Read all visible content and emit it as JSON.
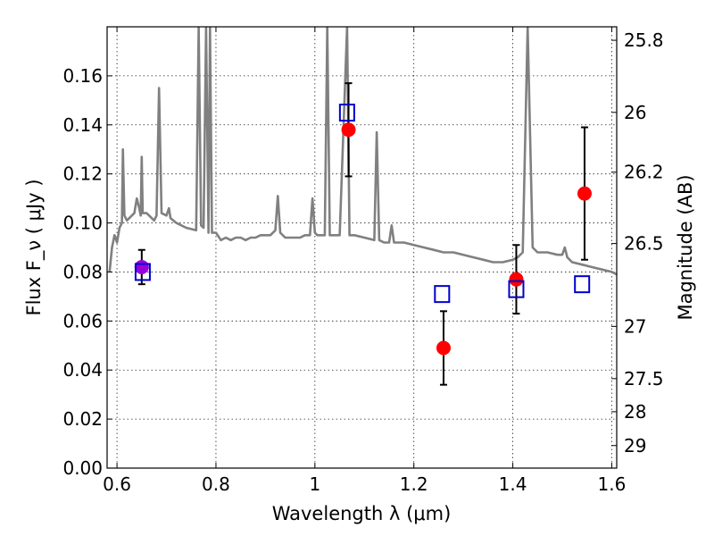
{
  "chart_data": {
    "type": "scatter",
    "xlabel": "Wavelength  λ (μm)",
    "ylabel": "Flux  F_ν ( μJy )",
    "ylabel_right": "Magnitude (AB)",
    "xlim": [
      0.58,
      1.61
    ],
    "ylim": [
      0.0,
      0.18
    ],
    "grid": true,
    "x_ticks": [
      0.6,
      0.8,
      1.0,
      1.2,
      1.4,
      1.6
    ],
    "x_tick_labels": [
      "0.6",
      "0.8",
      "1",
      "1.2",
      "1.4",
      "1.6"
    ],
    "y_ticks": [
      0.0,
      0.02,
      0.04,
      0.06,
      0.08,
      0.1,
      0.12,
      0.14,
      0.16
    ],
    "y_tick_labels": [
      "0.00",
      "0.02",
      "0.04",
      "0.06",
      "0.08",
      "0.10",
      "0.12",
      "0.14",
      "0.16"
    ],
    "right_ticks": [
      {
        "label": "25.8",
        "flux": 0.1745
      },
      {
        "label": "26",
        "flux": 0.1451
      },
      {
        "label": "26.2",
        "flux": 0.1207
      },
      {
        "label": "26.5",
        "flux": 0.0916
      },
      {
        "label": "27",
        "flux": 0.0578
      },
      {
        "label": "27.5",
        "flux": 0.0365
      },
      {
        "label": "28",
        "flux": 0.023
      },
      {
        "label": "29",
        "flux": 0.0092
      }
    ],
    "series": [
      {
        "kind": "line",
        "color": "#808080",
        "points": [
          [
            0.585,
            0.08
          ],
          [
            0.59,
            0.09
          ],
          [
            0.595,
            0.095
          ],
          [
            0.6,
            0.092
          ],
          [
            0.605,
            0.098
          ],
          [
            0.61,
            0.1
          ],
          [
            0.612,
            0.13
          ],
          [
            0.615,
            0.103
          ],
          [
            0.62,
            0.101
          ],
          [
            0.63,
            0.103
          ],
          [
            0.635,
            0.104
          ],
          [
            0.64,
            0.11
          ],
          [
            0.645,
            0.106
          ],
          [
            0.648,
            0.103
          ],
          [
            0.65,
            0.127
          ],
          [
            0.652,
            0.104
          ],
          [
            0.66,
            0.104
          ],
          [
            0.67,
            0.102
          ],
          [
            0.675,
            0.101
          ],
          [
            0.68,
            0.103
          ],
          [
            0.685,
            0.155
          ],
          [
            0.69,
            0.104
          ],
          [
            0.7,
            0.103
          ],
          [
            0.705,
            0.106
          ],
          [
            0.708,
            0.102
          ],
          [
            0.72,
            0.1
          ],
          [
            0.74,
            0.098
          ],
          [
            0.76,
            0.097
          ],
          [
            0.765,
            0.18
          ],
          [
            0.77,
            0.099
          ],
          [
            0.775,
            0.098
          ],
          [
            0.78,
            0.18
          ],
          [
            0.785,
            0.096
          ],
          [
            0.788,
            0.18
          ],
          [
            0.792,
            0.096
          ],
          [
            0.8,
            0.096
          ],
          [
            0.81,
            0.093
          ],
          [
            0.82,
            0.094
          ],
          [
            0.83,
            0.093
          ],
          [
            0.84,
            0.094
          ],
          [
            0.85,
            0.094
          ],
          [
            0.86,
            0.093
          ],
          [
            0.87,
            0.094
          ],
          [
            0.88,
            0.094
          ],
          [
            0.89,
            0.095
          ],
          [
            0.9,
            0.095
          ],
          [
            0.91,
            0.095
          ],
          [
            0.92,
            0.097
          ],
          [
            0.925,
            0.111
          ],
          [
            0.93,
            0.096
          ],
          [
            0.94,
            0.094
          ],
          [
            0.95,
            0.094
          ],
          [
            0.96,
            0.094
          ],
          [
            0.97,
            0.094
          ],
          [
            0.98,
            0.095
          ],
          [
            0.99,
            0.095
          ],
          [
            0.995,
            0.11
          ],
          [
            1.0,
            0.096
          ],
          [
            1.005,
            0.095
          ],
          [
            1.02,
            0.095
          ],
          [
            1.025,
            0.18
          ],
          [
            1.03,
            0.095
          ],
          [
            1.04,
            0.095
          ],
          [
            1.05,
            0.095
          ],
          [
            1.065,
            0.18
          ],
          [
            1.07,
            0.095
          ],
          [
            1.08,
            0.095
          ],
          [
            1.1,
            0.094
          ],
          [
            1.12,
            0.093
          ],
          [
            1.125,
            0.137
          ],
          [
            1.13,
            0.093
          ],
          [
            1.14,
            0.092
          ],
          [
            1.15,
            0.092
          ],
          [
            1.155,
            0.099
          ],
          [
            1.16,
            0.092
          ],
          [
            1.18,
            0.092
          ],
          [
            1.2,
            0.091
          ],
          [
            1.22,
            0.09
          ],
          [
            1.24,
            0.089
          ],
          [
            1.26,
            0.088
          ],
          [
            1.28,
            0.088
          ],
          [
            1.3,
            0.087
          ],
          [
            1.32,
            0.086
          ],
          [
            1.34,
            0.085
          ],
          [
            1.36,
            0.084
          ],
          [
            1.38,
            0.084
          ],
          [
            1.4,
            0.085
          ],
          [
            1.41,
            0.086
          ],
          [
            1.42,
            0.088
          ],
          [
            1.43,
            0.18
          ],
          [
            1.44,
            0.09
          ],
          [
            1.45,
            0.088
          ],
          [
            1.47,
            0.088
          ],
          [
            1.49,
            0.087
          ],
          [
            1.5,
            0.087
          ],
          [
            1.505,
            0.09
          ],
          [
            1.51,
            0.086
          ],
          [
            1.52,
            0.084
          ],
          [
            1.54,
            0.083
          ],
          [
            1.56,
            0.082
          ],
          [
            1.58,
            0.081
          ],
          [
            1.6,
            0.08
          ],
          [
            1.61,
            0.079
          ]
        ]
      },
      {
        "kind": "points",
        "marker": "circle",
        "color": "#ff0000",
        "x": [
          0.65,
          1.068,
          1.26,
          1.407,
          1.545
        ],
        "y": [
          0.082,
          0.138,
          0.049,
          0.077,
          0.112
        ],
        "yerr": [
          0.007,
          0.019,
          0.015,
          0.014,
          0.027
        ]
      },
      {
        "kind": "points",
        "marker": "square",
        "color": "#0000cc",
        "x": [
          0.652,
          1.065,
          1.257,
          1.407,
          1.54
        ],
        "y": [
          0.08,
          0.145,
          0.071,
          0.073,
          0.075
        ]
      }
    ]
  }
}
